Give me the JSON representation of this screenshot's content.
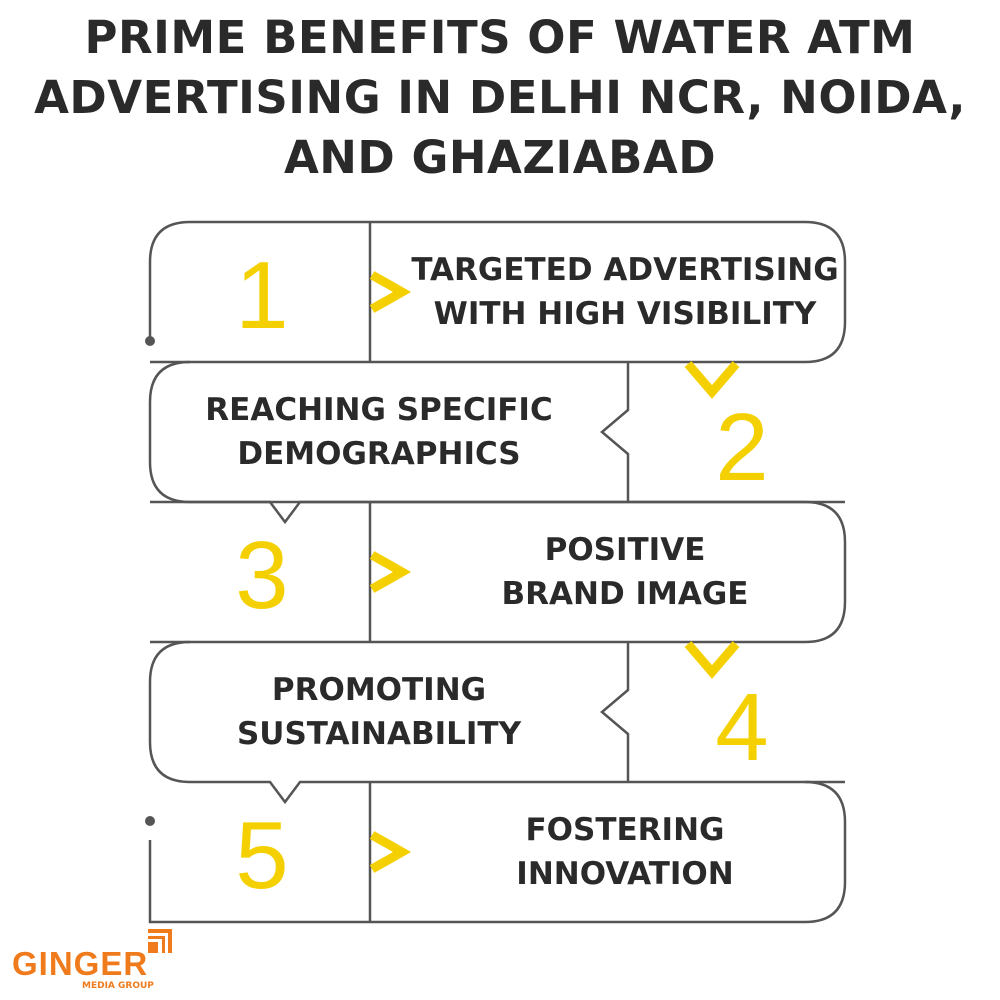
{
  "title": [
    "PRIME BENEFITS OF WATER ATM",
    "ADVERTISING IN DELHI NCR, NOIDA,",
    "AND GHAZIABAD"
  ],
  "steps": [
    {
      "number": "1",
      "lines": [
        "TARGETED ADVERTISING",
        "WITH HIGH VISIBILITY"
      ]
    },
    {
      "number": "2",
      "lines": [
        "REACHING SPECIFIC",
        "DEMOGRAPHICS"
      ]
    },
    {
      "number": "3",
      "lines": [
        "POSITIVE",
        "BRAND IMAGE"
      ]
    },
    {
      "number": "4",
      "lines": [
        "PROMOTING",
        "SUSTAINABILITY"
      ]
    },
    {
      "number": "5",
      "lines": [
        "FOSTERING",
        "INNOVATION"
      ]
    }
  ],
  "logo": {
    "name": "GINGER",
    "tagline": "MEDIA GROUP"
  },
  "colors": {
    "accent": "#f5d000",
    "text": "#2a2a2a",
    "outline": "#555555",
    "brand": "#f07b1c"
  }
}
